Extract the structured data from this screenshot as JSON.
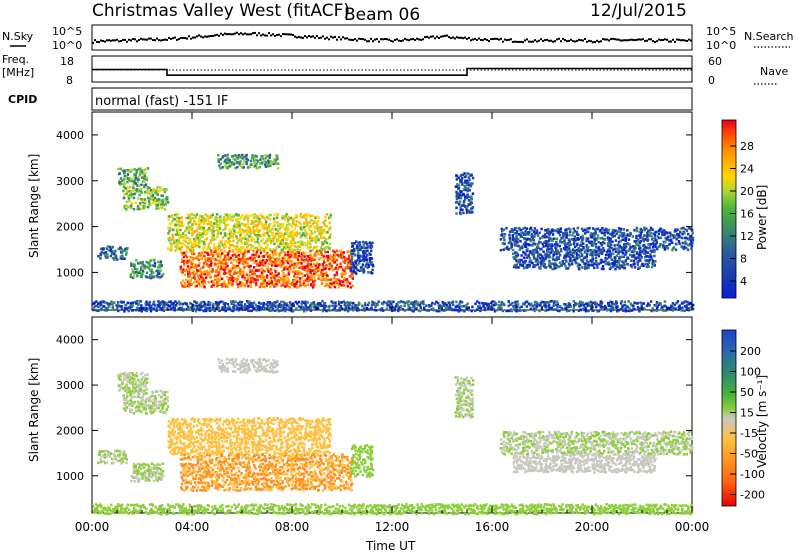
{
  "header": {
    "title": "Christmas Valley West (fitACF)",
    "beam": "Beam 06",
    "date": "12/Jul/2015"
  },
  "labels": {
    "nsky": "N.Sky",
    "nsearch": "N.Search",
    "freq_line1": "Freq.",
    "freq_line2": "[MHz]",
    "nave": "Nave",
    "cpid": "CPID",
    "cpid_value": "normal (fast) -151 IF",
    "x_axis": "Time UT",
    "range_axis": "Slant Range [km]",
    "power_axis": "Power [dB]",
    "velocity_axis": "Velocity [m s⁻¹]"
  },
  "chart_data": [
    {
      "type": "line",
      "panel": "noise",
      "series": [
        {
          "name": "N.Sky",
          "x": [
            0,
            1,
            2,
            3,
            4,
            5,
            6,
            7,
            8,
            9,
            10,
            11,
            12,
            13,
            14,
            15,
            16,
            17,
            18,
            19,
            20,
            21,
            22,
            23,
            24
          ],
          "values": [
            0.15,
            0.2,
            0.25,
            0.3,
            0.45,
            0.6,
            0.7,
            0.65,
            0.55,
            0.45,
            0.35,
            0.25,
            0.2,
            0.3,
            0.5,
            0.35,
            0.25,
            0.2,
            0.2,
            0.25,
            0.2,
            0.25,
            0.2,
            0.2,
            0.2
          ]
        }
      ],
      "yticks": [
        "10^5",
        "10^0"
      ],
      "right_yticks": [
        "10^5",
        "10^0"
      ]
    },
    {
      "type": "line",
      "panel": "frequency",
      "series": [
        {
          "name": "Freq.",
          "x": [
            0,
            3,
            3,
            15,
            15,
            24
          ],
          "values": [
            12.8,
            12.8,
            10.6,
            10.6,
            13.2,
            13.2
          ]
        }
      ],
      "ylim": [
        8,
        18
      ],
      "yticks": [
        "18",
        "8"
      ],
      "right_ylim": [
        0,
        60
      ],
      "right_yticks": [
        "60",
        "0"
      ]
    },
    {
      "type": "heatmap",
      "panel": "power",
      "xlim": [
        0,
        24
      ],
      "ylim": [
        180,
        4500
      ],
      "xticks": [
        "00:00",
        "04:00",
        "08:00",
        "12:00",
        "16:00",
        "20:00",
        "00:00"
      ],
      "yticks": [
        1000,
        2000,
        3000,
        4000
      ],
      "colorbar_ticks": [
        "28",
        "24",
        "20",
        "16",
        "12",
        "8",
        "4"
      ],
      "colorbar_colors": [
        "#e8001f",
        "#ff4a00",
        "#ff8a00",
        "#ffb300",
        "#ffd800",
        "#a8d63a",
        "#49b43a",
        "#3a8a6a",
        "#2a5aa0",
        "#1a3ab0",
        "#0a20d8"
      ],
      "regions": [
        {
          "t0": 1.0,
          "t1": 2.2,
          "r0": 2900,
          "r1": 3300,
          "value": 12
        },
        {
          "t0": 1.2,
          "t1": 3.0,
          "r0": 2400,
          "r1": 2900,
          "value": 14
        },
        {
          "t0": 0.2,
          "t1": 1.4,
          "r0": 1300,
          "r1": 1600,
          "value": 8
        },
        {
          "t0": 1.5,
          "t1": 2.8,
          "r0": 900,
          "r1": 1300,
          "value": 10
        },
        {
          "t0": 3.0,
          "t1": 9.5,
          "r0": 1500,
          "r1": 2300,
          "value": 18
        },
        {
          "t0": 3.5,
          "t1": 10.4,
          "r0": 700,
          "r1": 1500,
          "value": 26
        },
        {
          "t0": 5.0,
          "t1": 7.4,
          "r0": 3300,
          "r1": 3600,
          "value": 12
        },
        {
          "t0": 10.3,
          "t1": 11.2,
          "r0": 1000,
          "r1": 1700,
          "value": 6
        },
        {
          "t0": 14.5,
          "t1": 15.2,
          "r0": 2300,
          "r1": 3200,
          "value": 6
        },
        {
          "t0": 16.3,
          "t1": 24.0,
          "r0": 1500,
          "r1": 2000,
          "value": 6
        },
        {
          "t0": 16.8,
          "t1": 22.5,
          "r0": 1100,
          "r1": 1500,
          "value": 6
        },
        {
          "t0": 0.0,
          "t1": 24.0,
          "r0": 180,
          "r1": 400,
          "value": 6
        }
      ]
    },
    {
      "type": "heatmap",
      "panel": "velocity",
      "xlim": [
        0,
        24
      ],
      "ylim": [
        180,
        4500
      ],
      "xticks": [
        "00:00",
        "04:00",
        "08:00",
        "12:00",
        "16:00",
        "20:00",
        "00:00"
      ],
      "yticks": [
        1000,
        2000,
        3000,
        4000
      ],
      "colorbar_ticks": [
        "200",
        "100",
        "50",
        "15",
        "-15",
        "-50",
        "-100",
        "-200"
      ],
      "colorbar_colors": [
        "#1f3fd0",
        "#2a6aa8",
        "#2f8a6a",
        "#49b43a",
        "#8ccf3a",
        "#c8c8c0",
        "#ffc040",
        "#ff9020",
        "#ff6010",
        "#e80000"
      ],
      "regions": [
        {
          "t0": 1.0,
          "t1": 2.2,
          "r0": 2900,
          "r1": 3300,
          "value": 0
        },
        {
          "t0": 1.2,
          "t1": 3.0,
          "r0": 2400,
          "r1": 2900,
          "value": 0
        },
        {
          "t0": 0.2,
          "t1": 1.4,
          "r0": 1300,
          "r1": 1600,
          "value": 0
        },
        {
          "t0": 1.5,
          "t1": 2.8,
          "r0": 900,
          "r1": 1300,
          "value": 0
        },
        {
          "t0": 3.0,
          "t1": 9.5,
          "r0": 1500,
          "r1": 2300,
          "value": -50
        },
        {
          "t0": 3.5,
          "t1": 10.4,
          "r0": 700,
          "r1": 1500,
          "value": -90
        },
        {
          "t0": 5.0,
          "t1": 7.4,
          "r0": 3300,
          "r1": 3600,
          "value": -10
        },
        {
          "t0": 10.3,
          "t1": 11.2,
          "r0": 1000,
          "r1": 1700,
          "value": 30
        },
        {
          "t0": 14.5,
          "t1": 15.2,
          "r0": 2300,
          "r1": 3200,
          "value": 0
        },
        {
          "t0": 16.3,
          "t1": 24.0,
          "r0": 1500,
          "r1": 2000,
          "value": 0
        },
        {
          "t0": 16.8,
          "t1": 22.5,
          "r0": 1100,
          "r1": 1500,
          "value": -10
        },
        {
          "t0": 0.0,
          "t1": 24.0,
          "r0": 180,
          "r1": 400,
          "value": 20
        }
      ]
    }
  ]
}
